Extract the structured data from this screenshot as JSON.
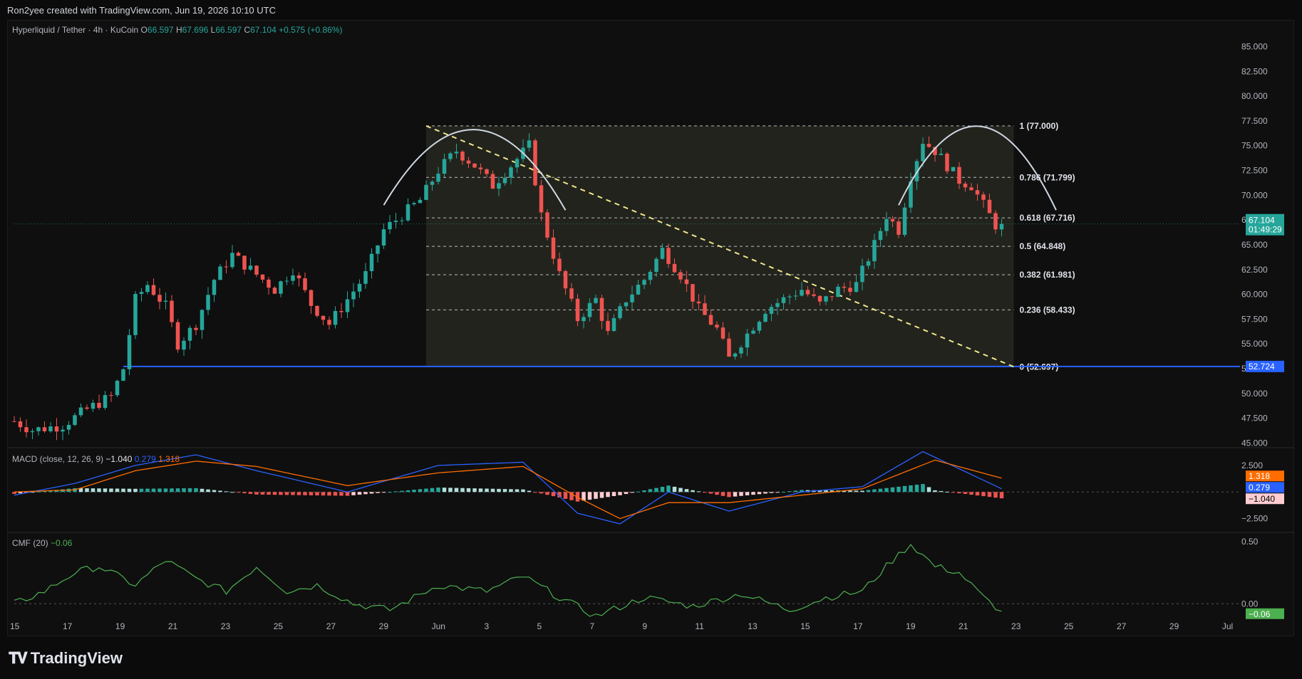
{
  "header": {
    "created_by": "Ron2yee created with TradingView.com, Jun 19, 2026 10:10 UTC"
  },
  "legend": {
    "symbol": "Hyperliquid / Tether · 4h · KuCoin",
    "o_label": "O",
    "o": "66.597",
    "h_label": "H",
    "h": "67.696",
    "l_label": "L",
    "l": "66.597",
    "c_label": "C",
    "c": "67.104",
    "change": "+0.575 (+0.86%)"
  },
  "macd_legend": {
    "name": "MACD (close, 12, 26, 9)",
    "hist": "−1.040",
    "macd": "0.279",
    "signal": "1.318"
  },
  "cmf_legend": {
    "name": "CMF (20)",
    "value": "−0.06"
  },
  "brand": {
    "name": "TradingView"
  },
  "colors": {
    "up": "#26a69a",
    "down": "#ef5350",
    "macd_line": "#2962ff",
    "signal_line": "#ff6d00",
    "cmf_line": "#4caf50",
    "support": "#2962ff",
    "zone": "#2a2b22"
  },
  "chart_data": [
    {
      "type": "candlestick",
      "title": "Hyperliquid / Tether · 4h · KuCoin",
      "x_ticks": [
        "15",
        "17",
        "19",
        "21",
        "23",
        "25",
        "27",
        "29",
        "Jun",
        "3",
        "5",
        "7",
        "9",
        "11",
        "13",
        "15",
        "17",
        "19",
        "21",
        "23",
        "25",
        "27",
        "29",
        "Jul"
      ],
      "y_ticks": [
        "85.000",
        "82.500",
        "80.000",
        "77.500",
        "75.000",
        "72.500",
        "70.000",
        "67.500",
        "65.000",
        "62.500",
        "60.000",
        "57.500",
        "55.000",
        "52.500",
        "50.000",
        "47.500",
        "45.000"
      ],
      "ylim": [
        44.6,
        86.4
      ],
      "close_path": [
        {
          "x": 0,
          "y": 47.2
        },
        {
          "x": 3,
          "y": 46.3
        },
        {
          "x": 8,
          "y": 46.8
        },
        {
          "x": 12,
          "y": 48.4
        },
        {
          "x": 16,
          "y": 49.7
        },
        {
          "x": 18,
          "y": 52.5
        },
        {
          "x": 20,
          "y": 59.5
        },
        {
          "x": 22,
          "y": 61.0
        },
        {
          "x": 25,
          "y": 58.8
        },
        {
          "x": 27,
          "y": 55.0
        },
        {
          "x": 30,
          "y": 57.0
        },
        {
          "x": 33,
          "y": 61.5
        },
        {
          "x": 36,
          "y": 64.0
        },
        {
          "x": 40,
          "y": 62.0
        },
        {
          "x": 43,
          "y": 60.5
        },
        {
          "x": 46,
          "y": 62.5
        },
        {
          "x": 49,
          "y": 59.0
        },
        {
          "x": 52,
          "y": 57.0
        },
        {
          "x": 55,
          "y": 59.5
        },
        {
          "x": 58,
          "y": 62.0
        },
        {
          "x": 61,
          "y": 66.5
        },
        {
          "x": 64,
          "y": 68.0
        },
        {
          "x": 67,
          "y": 69.5
        },
        {
          "x": 70,
          "y": 72.5
        },
        {
          "x": 73,
          "y": 74.5
        },
        {
          "x": 76,
          "y": 73.0
        },
        {
          "x": 79,
          "y": 71.0
        },
        {
          "x": 82,
          "y": 73.0
        },
        {
          "x": 85,
          "y": 75.0
        },
        {
          "x": 87,
          "y": 68.0
        },
        {
          "x": 90,
          "y": 62.0
        },
        {
          "x": 93,
          "y": 57.5
        },
        {
          "x": 96,
          "y": 59.5
        },
        {
          "x": 98,
          "y": 56.0
        },
        {
          "x": 101,
          "y": 59.5
        },
        {
          "x": 104,
          "y": 61.5
        },
        {
          "x": 107,
          "y": 64.5
        },
        {
          "x": 110,
          "y": 62.0
        },
        {
          "x": 113,
          "y": 58.5
        },
        {
          "x": 116,
          "y": 56.5
        },
        {
          "x": 118,
          "y": 53.5
        },
        {
          "x": 121,
          "y": 56.0
        },
        {
          "x": 124,
          "y": 58.5
        },
        {
          "x": 127,
          "y": 59.5
        },
        {
          "x": 130,
          "y": 60.5
        },
        {
          "x": 133,
          "y": 59.0
        },
        {
          "x": 136,
          "y": 60.5
        },
        {
          "x": 139,
          "y": 61.0
        },
        {
          "x": 142,
          "y": 65.0
        },
        {
          "x": 144,
          "y": 68.0
        },
        {
          "x": 146,
          "y": 66.5
        },
        {
          "x": 148,
          "y": 72.0
        },
        {
          "x": 150,
          "y": 75.5
        },
        {
          "x": 152,
          "y": 74.5
        },
        {
          "x": 154,
          "y": 73.0
        },
        {
          "x": 156,
          "y": 71.5
        },
        {
          "x": 158,
          "y": 71.0
        },
        {
          "x": 160,
          "y": 69.0
        },
        {
          "x": 162,
          "y": 67.0
        },
        {
          "x": 163,
          "y": 67.1
        }
      ],
      "current_price": "67.104",
      "countdown": "01:49:29",
      "support_label": "52.724",
      "fib_levels": [
        {
          "label": "1 (77.000)",
          "value": 77.0
        },
        {
          "label": "0.786 (71.799)",
          "value": 71.799
        },
        {
          "label": "0.618 (67.716)",
          "value": 67.716
        },
        {
          "label": "0.5 (64.848)",
          "value": 64.848
        },
        {
          "label": "0.382 (61.981)",
          "value": 61.981
        },
        {
          "label": "0.236 (58.433)",
          "value": 58.433
        },
        {
          "label": "0 (52.697)",
          "value": 52.697
        }
      ],
      "support_value": 52.724
    },
    {
      "type": "bar",
      "title": "MACD (close, 12, 26, 9)",
      "y_ticks": [
        "2.500",
        "−2.500"
      ],
      "ylim": [
        -3.6,
        3.9
      ],
      "macd": [
        {
          "x": 0,
          "y": -0.3
        },
        {
          "x": 10,
          "y": 0.8
        },
        {
          "x": 20,
          "y": 2.5
        },
        {
          "x": 30,
          "y": 3.5
        },
        {
          "x": 40,
          "y": 2.0
        },
        {
          "x": 55,
          "y": 0.0
        },
        {
          "x": 70,
          "y": 2.5
        },
        {
          "x": 84,
          "y": 2.8
        },
        {
          "x": 93,
          "y": -2.0
        },
        {
          "x": 100,
          "y": -3.0
        },
        {
          "x": 108,
          "y": 0.0
        },
        {
          "x": 118,
          "y": -1.8
        },
        {
          "x": 130,
          "y": 0.0
        },
        {
          "x": 140,
          "y": 0.5
        },
        {
          "x": 150,
          "y": 3.8
        },
        {
          "x": 163,
          "y": 0.3
        }
      ],
      "signal": [
        {
          "x": 0,
          "y": 0.0
        },
        {
          "x": 10,
          "y": 0.2
        },
        {
          "x": 20,
          "y": 2.0
        },
        {
          "x": 30,
          "y": 2.9
        },
        {
          "x": 40,
          "y": 2.4
        },
        {
          "x": 55,
          "y": 0.6
        },
        {
          "x": 70,
          "y": 1.8
        },
        {
          "x": 84,
          "y": 2.4
        },
        {
          "x": 93,
          "y": -0.5
        },
        {
          "x": 100,
          "y": -2.5
        },
        {
          "x": 108,
          "y": -1.0
        },
        {
          "x": 118,
          "y": -1.0
        },
        {
          "x": 130,
          "y": -0.3
        },
        {
          "x": 140,
          "y": 0.3
        },
        {
          "x": 152,
          "y": 3.0
        },
        {
          "x": 163,
          "y": 1.3
        }
      ]
    },
    {
      "type": "line",
      "title": "CMF (20)",
      "y_ticks": [
        "0.50",
        "0.00"
      ],
      "ylim": [
        -0.25,
        0.55
      ],
      "values": [
        {
          "x": 0,
          "y": 0.0
        },
        {
          "x": 5,
          "y": 0.1
        },
        {
          "x": 10,
          "y": 0.25
        },
        {
          "x": 14,
          "y": 0.3
        },
        {
          "x": 20,
          "y": 0.15
        },
        {
          "x": 25,
          "y": 0.35
        },
        {
          "x": 30,
          "y": 0.2
        },
        {
          "x": 35,
          "y": 0.1
        },
        {
          "x": 40,
          "y": 0.3
        },
        {
          "x": 45,
          "y": 0.1
        },
        {
          "x": 50,
          "y": 0.15
        },
        {
          "x": 56,
          "y": 0.0
        },
        {
          "x": 62,
          "y": -0.05
        },
        {
          "x": 70,
          "y": 0.15
        },
        {
          "x": 78,
          "y": 0.1
        },
        {
          "x": 84,
          "y": 0.22
        },
        {
          "x": 90,
          "y": 0.05
        },
        {
          "x": 96,
          "y": -0.1
        },
        {
          "x": 104,
          "y": 0.05
        },
        {
          "x": 112,
          "y": -0.02
        },
        {
          "x": 120,
          "y": 0.08
        },
        {
          "x": 128,
          "y": -0.05
        },
        {
          "x": 134,
          "y": 0.05
        },
        {
          "x": 140,
          "y": 0.1
        },
        {
          "x": 145,
          "y": 0.35
        },
        {
          "x": 148,
          "y": 0.48
        },
        {
          "x": 152,
          "y": 0.3
        },
        {
          "x": 156,
          "y": 0.25
        },
        {
          "x": 160,
          "y": 0.05
        },
        {
          "x": 163,
          "y": -0.06
        }
      ],
      "current_label": "−0.06"
    }
  ]
}
